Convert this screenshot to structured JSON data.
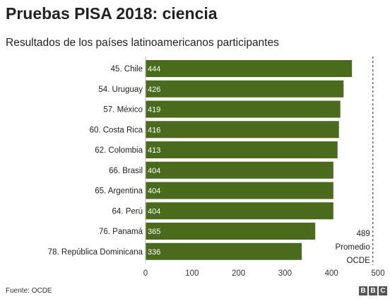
{
  "header": {
    "title": "Pruebas PISA 2018: ciencia",
    "subtitle": "Resultados de los países latinoamericanos participantes"
  },
  "footer": {
    "source": "Fuente: OCDE",
    "logo": [
      "B",
      "B",
      "C"
    ]
  },
  "colors": {
    "bar": "#4a6b1c",
    "text": "#222222",
    "axis": "#999999"
  },
  "chart_data": {
    "type": "bar",
    "orientation": "horizontal",
    "title": "Pruebas PISA 2018: ciencia",
    "subtitle": "Resultados de los países latinoamericanos participantes",
    "categories": [
      "45. Chile",
      "54. Uruguay",
      "57. México",
      "60. Costa Rica",
      "62. Colombia",
      "66. Brasil",
      "65. Argentina",
      "64. Perú",
      "76. Panamá",
      "78. República Dominicana"
    ],
    "values": [
      444,
      426,
      419,
      416,
      413,
      404,
      404,
      404,
      365,
      336
    ],
    "xlim": [
      0,
      500
    ],
    "xticks": [
      0,
      100,
      200,
      300,
      400,
      500
    ],
    "reference_line": {
      "value": 489,
      "label_value": "489",
      "label_line1": "Promedio",
      "label_line2": "OCDE"
    },
    "data_labels": true,
    "grid": false,
    "legend": false
  }
}
